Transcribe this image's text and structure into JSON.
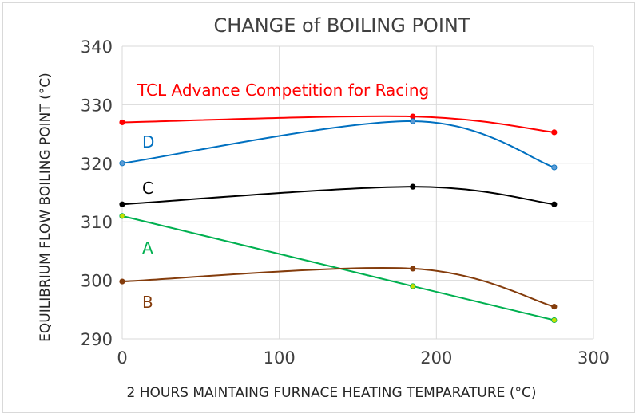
{
  "chart_data": {
    "type": "line",
    "title": "CHANGE of BOILING POINT",
    "xlabel": "2 HOURS MAINTAING FURNACE HEATING TEMPARATURE (°C)",
    "ylabel": "EQUILIBRIUM FLOW BOILING POINT (°C)",
    "xlim": [
      0,
      300
    ],
    "ylim": [
      290,
      340
    ],
    "x_ticks": [
      "0",
      "100",
      "200",
      "300"
    ],
    "y_ticks": [
      "290",
      "300",
      "310",
      "320",
      "330",
      "340"
    ],
    "grid": true,
    "legend": "inline labels",
    "series": [
      {
        "name": "TCL Advance Competition for Racing",
        "color": "#ff0000",
        "marker_color": "#ff0000",
        "points": [
          [
            0,
            327
          ],
          [
            185,
            328
          ],
          [
            275,
            325.3
          ]
        ]
      },
      {
        "name": "D",
        "color": "#0070c0",
        "marker_color": "#5b9bd5",
        "points": [
          [
            0,
            320
          ],
          [
            185,
            327.2
          ],
          [
            275,
            319.3
          ]
        ]
      },
      {
        "name": "C",
        "color": "#000000",
        "marker_color": "#000000",
        "points": [
          [
            0,
            313
          ],
          [
            185,
            316
          ],
          [
            275,
            313
          ]
        ]
      },
      {
        "name": "A",
        "color": "#00b050",
        "marker_color": "#c5e000",
        "points": [
          [
            0,
            311
          ],
          [
            185,
            299
          ],
          [
            275,
            293.2
          ]
        ]
      },
      {
        "name": "B",
        "color": "#843c0c",
        "marker_color": "#843c0c",
        "points": [
          [
            0,
            299.8
          ],
          [
            185,
            302
          ],
          [
            275,
            295.5
          ]
        ]
      }
    ]
  }
}
